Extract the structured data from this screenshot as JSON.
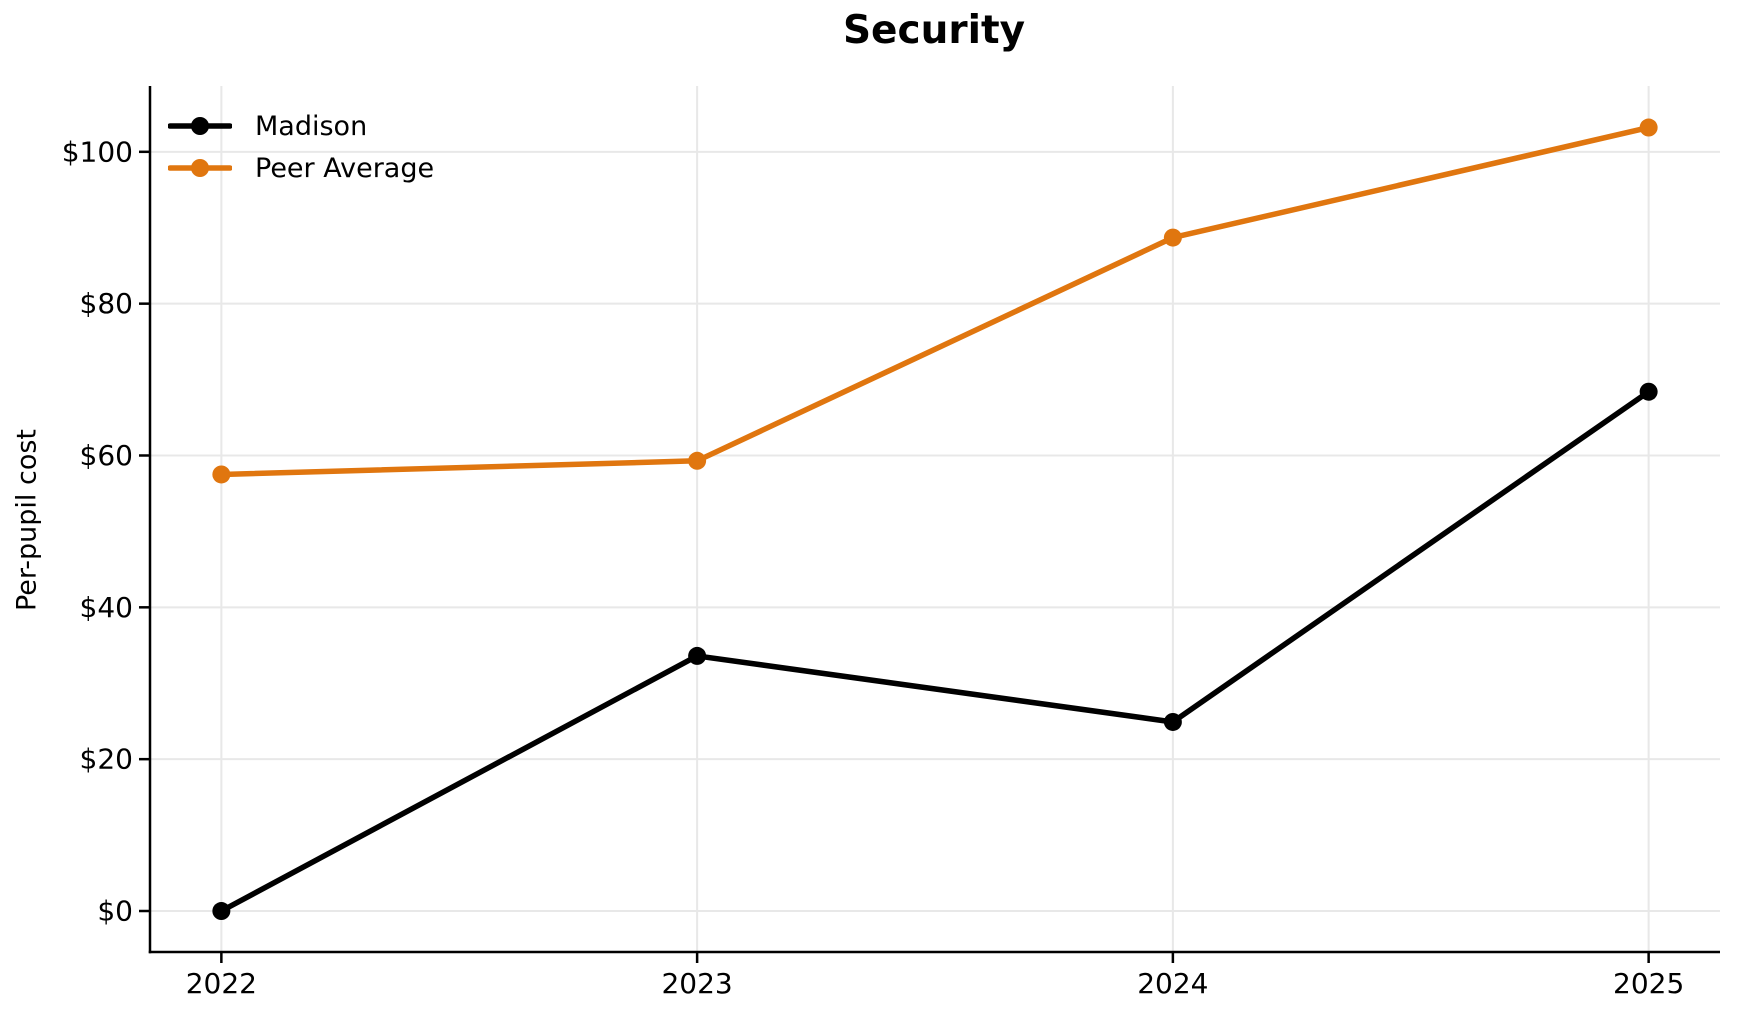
{
  "chart_data": {
    "type": "line",
    "title": "Security",
    "ylabel": "Per-pupil cost",
    "xlabel": "",
    "x": [
      2022,
      2023,
      2024,
      2025
    ],
    "x_tick_labels": [
      "2022",
      "2023",
      "2024",
      "2025"
    ],
    "series": [
      {
        "name": "Madison",
        "color": "#000000",
        "values": [
          0,
          33.6,
          24.9,
          68.4
        ]
      },
      {
        "name": "Peer Average",
        "color": "#E0760F",
        "values": [
          57.5,
          59.3,
          88.7,
          103.2
        ]
      }
    ],
    "y_ticks": [
      0,
      20,
      40,
      60,
      80,
      100
    ],
    "y_tick_labels": [
      "$0",
      "$20",
      "$40",
      "$60",
      "$80",
      "$100"
    ],
    "xlim": [
      2021.85,
      2025.15
    ],
    "ylim": [
      -5.4,
      108.67
    ],
    "grid": true,
    "grid_color": "#E8E8E8",
    "axis_color": "#000000",
    "legend_position": "upper left",
    "legend": [
      "Madison",
      "Peer Average"
    ]
  }
}
